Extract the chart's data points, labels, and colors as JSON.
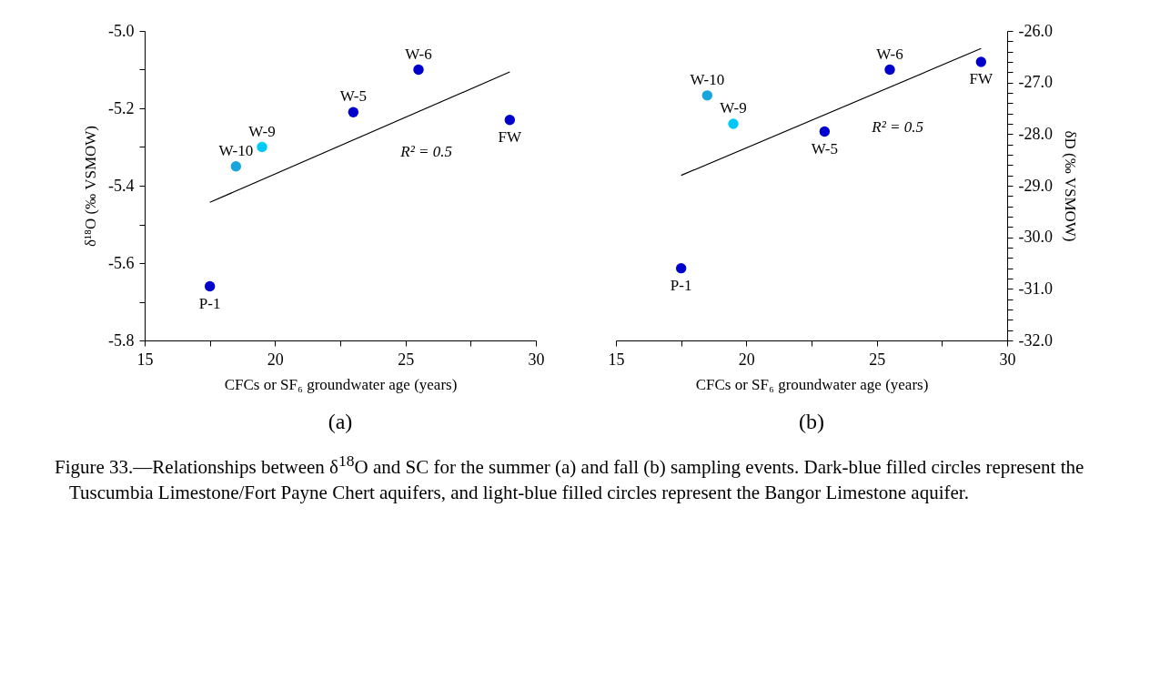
{
  "chart_data": [
    {
      "type": "scatter",
      "title": "(a)",
      "xlabel": "CFCs or SF₆ groundwater age (years)",
      "ylabel": "δ¹⁸O (‰ VSMOW)",
      "xlim": [
        15,
        30
      ],
      "xticks": [
        15,
        {
          "value": 17.5,
          "label": null
        },
        20,
        {
          "value": 22.5,
          "label": null
        },
        25,
        {
          "value": 27.5,
          "label": null
        },
        30
      ],
      "ylim": [
        -5.8,
        -5.0
      ],
      "yticks": [
        {
          "value": -5.8,
          "label": "-5.8"
        },
        {
          "value": -5.7,
          "label": null
        },
        {
          "value": -5.6,
          "label": "-5.6"
        },
        {
          "value": -5.5,
          "label": null
        },
        {
          "value": -5.4,
          "label": "-5.4"
        },
        {
          "value": -5.3,
          "label": null
        },
        {
          "value": -5.2,
          "label": "-5.2"
        },
        {
          "value": -5.1,
          "label": null
        },
        {
          "value": -5.0,
          "label": "-5.0"
        }
      ],
      "grid": false,
      "marker": "circle",
      "series": [
        {
          "color": "#0000cc",
          "x": [
            17.5,
            23,
            25.5,
            29
          ],
          "values": [
            -5.66,
            -5.21,
            -5.1,
            -5.23
          ]
        },
        {
          "colors": [
            "#1ba5dd",
            "#00c8f8"
          ],
          "x": [
            18.5,
            19.5
          ],
          "values": [
            -5.35,
            -5.3
          ]
        },
        {
          "type": "line",
          "color": "#000000",
          "marker": "none",
          "x": [
            17.5,
            29
          ],
          "values": [
            -5.443,
            -5.106
          ]
        }
      ],
      "annotations": [
        {
          "text": "P-1",
          "x": 17.5,
          "y": -5.66
        },
        {
          "text": "W-10",
          "x": 18.5,
          "y": -5.35
        },
        {
          "text": "W-9",
          "x": 19.5,
          "y": -5.3
        },
        {
          "text": "W-5",
          "x": 23,
          "y": -5.21
        },
        {
          "text": "W-6",
          "x": 25.5,
          "y": -5.1
        },
        {
          "text": "FW",
          "x": 29,
          "y": -5.23
        },
        "R² = 0.5"
      ]
    },
    {
      "type": "scatter",
      "title": "(b)",
      "xlabel": "CFCs or SF₆ groundwater age (years)",
      "ylabel": "δD (‰ VSMOW)",
      "xlim": [
        15,
        30
      ],
      "xticks": [
        15,
        {
          "value": 17.5,
          "label": null
        },
        20,
        {
          "value": 22.5,
          "label": null
        },
        25,
        {
          "value": 27.5,
          "label": null
        },
        30
      ],
      "ylim": [
        -32,
        -26
      ],
      "yticks": [
        {
          "value": -32,
          "label": "-32.0"
        },
        {
          "value": -31.8,
          "label": null
        },
        {
          "value": -31.6,
          "label": null
        },
        {
          "value": -31.4,
          "label": null
        },
        {
          "value": -31.2,
          "label": null
        },
        {
          "value": -31,
          "label": "-31.0"
        },
        {
          "value": -30.8,
          "label": null
        },
        {
          "value": -30.6,
          "label": null
        },
        {
          "value": -30.4,
          "label": null
        },
        {
          "value": -30.2,
          "label": null
        },
        {
          "value": -30,
          "label": "-30.0"
        },
        {
          "value": -29.8,
          "label": null
        },
        {
          "value": -29.6,
          "label": null
        },
        {
          "value": -29.4,
          "label": null
        },
        {
          "value": -29.2,
          "label": null
        },
        {
          "value": -29,
          "label": "-29.0"
        },
        {
          "value": -28.8,
          "label": null
        },
        {
          "value": -28.6,
          "label": null
        },
        {
          "value": -28.4,
          "label": null
        },
        {
          "value": -28.2,
          "label": null
        },
        {
          "value": -28,
          "label": "-28.0"
        },
        {
          "value": -27.8,
          "label": null
        },
        {
          "value": -27.6,
          "label": null
        },
        {
          "value": -27.4,
          "label": null
        },
        {
          "value": -27.2,
          "label": null
        },
        {
          "value": -27,
          "label": "-27.0"
        },
        {
          "value": -26.8,
          "label": null
        },
        {
          "value": -26.6,
          "label": null
        },
        {
          "value": -26.4,
          "label": null
        },
        {
          "value": -26.2,
          "label": null
        },
        {
          "value": -26,
          "label": "-26.0"
        }
      ],
      "grid": false,
      "marker": "circle",
      "series": [
        {
          "color": "#0000cc",
          "x": [
            17.5,
            23,
            25.5,
            29
          ],
          "values": [
            -30.6,
            -27.95,
            -26.75,
            -26.6
          ]
        },
        {
          "colors": [
            "#1ba5dd",
            "#00c8f8"
          ],
          "x": [
            18.5,
            19.5
          ],
          "values": [
            -27.25,
            -27.8
          ]
        },
        {
          "type": "line",
          "color": "#000000",
          "marker": "none",
          "x": [
            17.5,
            29
          ],
          "values": [
            -28.8,
            -26.34
          ]
        }
      ],
      "annotations": [
        {
          "text": "P-1",
          "x": 17.5,
          "y": -30.6
        },
        {
          "text": "W-10",
          "x": 18.5,
          "y": -27.25
        },
        {
          "text": "W-9",
          "x": 19.5,
          "y": -27.8
        },
        {
          "text": "W-5",
          "x": 23,
          "y": -27.95
        },
        {
          "text": "W-6",
          "x": 25.5,
          "y": -26.75
        },
        {
          "text": "FW",
          "x": 29,
          "y": -26.6
        },
        "R² = 0.5"
      ]
    },
    {
      "type": "other",
      "annotations": [
        "Figure 33.—Relationships between δ$^{18}$O and SC for the summer (a) and fall (b) sampling events. Dark-blue filled circles represent the Tuscumbia Limestone/Fort Payne Chert aquifers, and light-blue filled circles represent the Bangor Limestone aquifer."
      ]
    }
  ]
}
